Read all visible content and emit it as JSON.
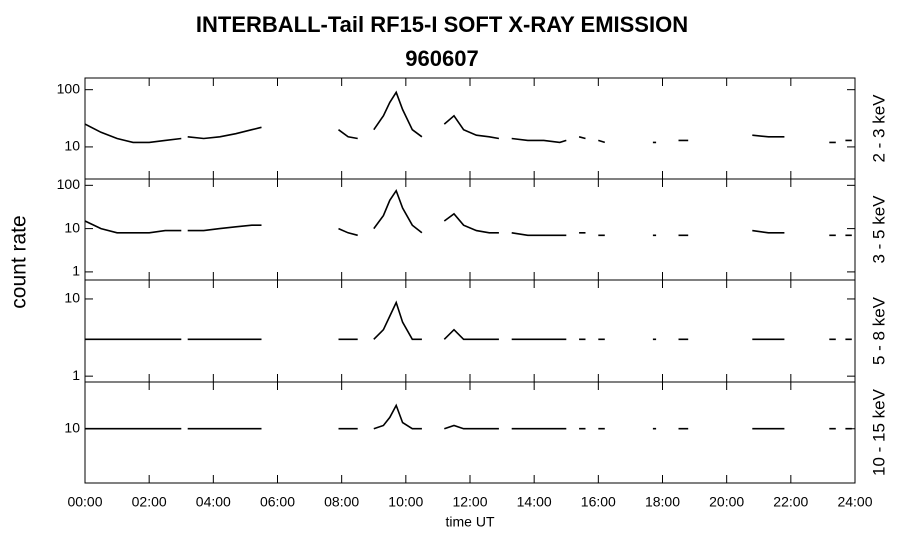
{
  "title": "INTERBALL-Tail RF15-I SOFT X-RAY EMISSION",
  "subtitle": "960607",
  "ylabel": "count rate",
  "chart_data": [
    {
      "type": "line",
      "label": "2 - 3 keV",
      "color": "#000000",
      "log_scale": true,
      "xlim": [
        0,
        24
      ],
      "xticks": [
        {
          "value": 0,
          "label": "00:00"
        },
        {
          "value": 2,
          "label": "02:00"
        },
        {
          "value": 4,
          "label": "04:00"
        },
        {
          "value": 6,
          "label": "06:00"
        },
        {
          "value": 8,
          "label": "08:00"
        },
        {
          "value": 10,
          "label": "10:00"
        },
        {
          "value": 12,
          "label": "12:00"
        },
        {
          "value": 14,
          "label": "14:00"
        },
        {
          "value": 16,
          "label": "16:00"
        },
        {
          "value": 18,
          "label": "18:00"
        },
        {
          "value": 20,
          "label": "20:00"
        },
        {
          "value": 22,
          "label": "22:00"
        },
        {
          "value": 24,
          "label": "24:00"
        }
      ],
      "ylim": [
        2.75,
        160
      ],
      "yticks": [
        10,
        100
      ],
      "x": [
        0,
        0.5,
        1,
        1.5,
        2,
        2.5,
        3,
        3.1,
        3.2,
        3.7,
        4.2,
        4.7,
        5.2,
        5.5,
        6.5,
        7.9,
        8.2,
        8.5,
        8.7,
        9.0,
        9.3,
        9.5,
        9.7,
        9.9,
        10.2,
        10.5,
        10.8,
        11.2,
        11.5,
        11.8,
        12.2,
        12.6,
        12.9,
        13.1,
        13.3,
        13.8,
        14.3,
        14.8,
        15.0,
        15.2,
        15.4,
        15.6,
        15.8,
        16.0,
        16.2,
        17.0,
        17.7,
        17.8,
        18.2,
        18.5,
        18.8,
        19.5,
        20.8,
        21.3,
        21.8,
        22.5,
        23.2,
        23.4,
        23.55,
        23.7,
        23.9
      ],
      "values": [
        25,
        18,
        14,
        12,
        12,
        13,
        14,
        null,
        15,
        14,
        15,
        17,
        20,
        22,
        null,
        20,
        15,
        14,
        null,
        20,
        35,
        60,
        90,
        45,
        20,
        15,
        null,
        25,
        35,
        20,
        16,
        15,
        14,
        null,
        14,
        13,
        13,
        12,
        13,
        null,
        15,
        14,
        null,
        13,
        12,
        null,
        12,
        12,
        null,
        13,
        13,
        null,
        16,
        15,
        15,
        null,
        12,
        12,
        null,
        13,
        13
      ]
    },
    {
      "type": "line",
      "label": "3 - 5 keV",
      "color": "#000000",
      "log_scale": true,
      "xlim": [
        0,
        24
      ],
      "xticks": [
        {
          "value": 0,
          "label": "00:00"
        },
        {
          "value": 2,
          "label": "02:00"
        },
        {
          "value": 4,
          "label": "04:00"
        },
        {
          "value": 6,
          "label": "06:00"
        },
        {
          "value": 8,
          "label": "08:00"
        },
        {
          "value": 10,
          "label": "10:00"
        },
        {
          "value": 12,
          "label": "12:00"
        },
        {
          "value": 14,
          "label": "14:00"
        },
        {
          "value": 16,
          "label": "16:00"
        },
        {
          "value": 18,
          "label": "18:00"
        },
        {
          "value": 20,
          "label": "20:00"
        },
        {
          "value": 22,
          "label": "22:00"
        },
        {
          "value": 24,
          "label": "24:00"
        }
      ],
      "ylim": [
        0.65,
        140
      ],
      "yticks": [
        1,
        10,
        100
      ],
      "x": [
        0,
        0.5,
        1,
        1.5,
        2,
        2.5,
        3,
        3.1,
        3.2,
        3.7,
        4.2,
        4.7,
        5.2,
        5.5,
        6.5,
        7.9,
        8.2,
        8.5,
        8.7,
        9.0,
        9.3,
        9.5,
        9.7,
        9.9,
        10.2,
        10.5,
        10.8,
        11.2,
        11.5,
        11.8,
        12.2,
        12.6,
        12.9,
        13.1,
        13.3,
        13.8,
        14.3,
        14.8,
        15.0,
        15.2,
        15.4,
        15.6,
        15.8,
        16.0,
        16.2,
        17.0,
        17.7,
        17.8,
        18.2,
        18.5,
        18.8,
        19.5,
        20.8,
        21.3,
        21.8,
        22.5,
        23.2,
        23.4,
        23.55,
        23.7,
        23.9
      ],
      "values": [
        15,
        10,
        8,
        8,
        8,
        9,
        9,
        null,
        9,
        9,
        10,
        11,
        12,
        12,
        null,
        10,
        8,
        7,
        null,
        10,
        20,
        45,
        75,
        30,
        12,
        8,
        null,
        15,
        22,
        12,
        9,
        8,
        8,
        null,
        8,
        7,
        7,
        7,
        7,
        null,
        8,
        8,
        null,
        7,
        7,
        null,
        7,
        7,
        null,
        7,
        7,
        null,
        9,
        8,
        8,
        null,
        7,
        7,
        null,
        7,
        7
      ]
    },
    {
      "type": "line",
      "label": "5 - 8 keV",
      "color": "#000000",
      "log_scale": true,
      "xlim": [
        0,
        24
      ],
      "xticks": [
        {
          "value": 0,
          "label": "00:00"
        },
        {
          "value": 2,
          "label": "02:00"
        },
        {
          "value": 4,
          "label": "04:00"
        },
        {
          "value": 6,
          "label": "06:00"
        },
        {
          "value": 8,
          "label": "08:00"
        },
        {
          "value": 10,
          "label": "10:00"
        },
        {
          "value": 12,
          "label": "12:00"
        },
        {
          "value": 14,
          "label": "14:00"
        },
        {
          "value": 16,
          "label": "16:00"
        },
        {
          "value": 18,
          "label": "18:00"
        },
        {
          "value": 20,
          "label": "20:00"
        },
        {
          "value": 22,
          "label": "22:00"
        },
        {
          "value": 24,
          "label": "24:00"
        }
      ],
      "ylim": [
        0.84,
        17.6
      ],
      "yticks": [
        1,
        10
      ],
      "x": [
        0,
        0.5,
        1,
        1.5,
        2,
        2.5,
        3,
        3.1,
        3.2,
        3.7,
        4.2,
        4.7,
        5.2,
        5.5,
        6.5,
        7.9,
        8.2,
        8.5,
        8.7,
        9.0,
        9.3,
        9.5,
        9.7,
        9.9,
        10.2,
        10.5,
        10.8,
        11.2,
        11.5,
        11.8,
        12.2,
        12.6,
        12.9,
        13.1,
        13.3,
        13.8,
        14.3,
        14.8,
        15.0,
        15.2,
        15.4,
        15.6,
        15.8,
        16.0,
        16.2,
        17.0,
        17.7,
        17.8,
        18.2,
        18.5,
        18.8,
        19.5,
        20.8,
        21.3,
        21.8,
        22.5,
        23.2,
        23.4,
        23.55,
        23.7,
        23.9
      ],
      "values": [
        3,
        3,
        3,
        3,
        3,
        3,
        3,
        null,
        3,
        3,
        3,
        3,
        3,
        3,
        null,
        3,
        3,
        3,
        null,
        3,
        4,
        6,
        9,
        5,
        3,
        3,
        null,
        3,
        4,
        3,
        3,
        3,
        3,
        null,
        3,
        3,
        3,
        3,
        3,
        null,
        3,
        3,
        null,
        3,
        3,
        null,
        3,
        3,
        null,
        3,
        3,
        null,
        3,
        3,
        3,
        null,
        3,
        3,
        null,
        3,
        3
      ]
    },
    {
      "type": "line",
      "label": "10 - 15 keV",
      "color": "#000000",
      "log_scale": true,
      "xlabel": "time UT",
      "xlim": [
        0,
        24
      ],
      "xticks": [
        {
          "value": 0,
          "label": "00:00"
        },
        {
          "value": 2,
          "label": "02:00"
        },
        {
          "value": 4,
          "label": "04:00"
        },
        {
          "value": 6,
          "label": "06:00"
        },
        {
          "value": 8,
          "label": "08:00"
        },
        {
          "value": 10,
          "label": "10:00"
        },
        {
          "value": 12,
          "label": "12:00"
        },
        {
          "value": 14,
          "label": "14:00"
        },
        {
          "value": 16,
          "label": "16:00"
        },
        {
          "value": 18,
          "label": "18:00"
        },
        {
          "value": 20,
          "label": "20:00"
        },
        {
          "value": 22,
          "label": "22:00"
        },
        {
          "value": 24,
          "label": "24:00"
        }
      ],
      "ylim": [
        2,
        40
      ],
      "yticks": [
        10
      ],
      "x": [
        0,
        0.5,
        1,
        1.5,
        2,
        2.5,
        3,
        3.1,
        3.2,
        3.7,
        4.2,
        4.7,
        5.2,
        5.5,
        6.5,
        7.9,
        8.2,
        8.5,
        8.7,
        9.0,
        9.3,
        9.5,
        9.7,
        9.9,
        10.2,
        10.5,
        10.8,
        11.2,
        11.5,
        11.8,
        12.2,
        12.6,
        12.9,
        13.1,
        13.3,
        13.8,
        14.3,
        14.8,
        15.0,
        15.2,
        15.4,
        15.6,
        15.8,
        16.0,
        16.2,
        17.0,
        17.7,
        17.8,
        18.2,
        18.5,
        18.8,
        19.5,
        20.8,
        21.3,
        21.8,
        22.5,
        23.2,
        23.4,
        23.55,
        23.7,
        23.9
      ],
      "values": [
        10,
        10,
        10,
        10,
        10,
        10,
        10,
        null,
        10,
        10,
        10,
        10,
        10,
        10,
        null,
        10,
        10,
        10,
        null,
        10,
        11,
        14,
        20,
        12,
        10,
        10,
        null,
        10,
        11,
        10,
        10,
        10,
        10,
        null,
        10,
        10,
        10,
        10,
        10,
        null,
        10,
        10,
        null,
        10,
        10,
        null,
        10,
        10,
        null,
        10,
        10,
        null,
        10,
        10,
        10,
        null,
        10,
        10,
        null,
        10,
        10
      ]
    }
  ]
}
